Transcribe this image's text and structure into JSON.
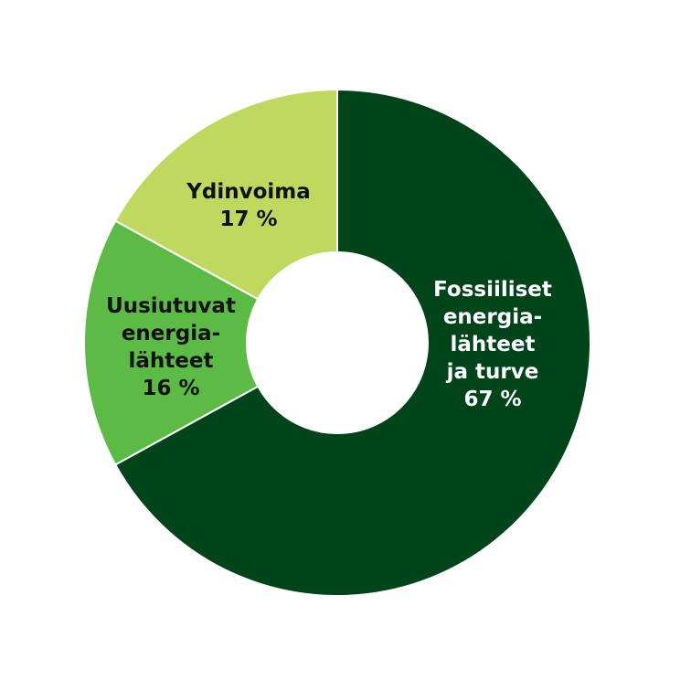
{
  "chart_data": {
    "type": "pie",
    "donut": true,
    "colors": {
      "background": "#ffffff",
      "separator": "#ffffff"
    },
    "slices": [
      {
        "label_lines": [
          "Fossiiliset",
          "energia-",
          "lähteet",
          "ja turve"
        ],
        "value": 67,
        "value_text": "67 %",
        "color": "#00451a",
        "text_color": "#ffffff"
      },
      {
        "label_lines": [
          "Uusiutuvat",
          "energia-",
          "lähteet"
        ],
        "value": 16,
        "value_text": "16 %",
        "color": "#5cbb45",
        "text_color": "#111111"
      },
      {
        "label_lines": [
          "Ydinvoima"
        ],
        "value": 17,
        "value_text": "17 %",
        "color": "#bfd95e",
        "text_color": "#111111"
      }
    ]
  }
}
